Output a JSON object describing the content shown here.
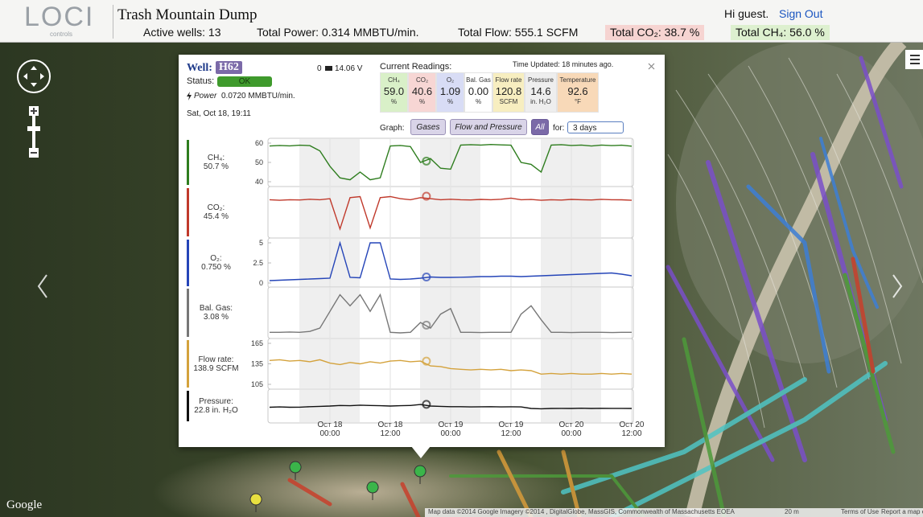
{
  "header": {
    "logo": "LOCI",
    "logo_sub": "controls",
    "title": "Trash Mountain Dump",
    "stats": [
      {
        "text": "Active wells: 13"
      },
      {
        "text": "Total Power: 0.314 MMBTU/min."
      },
      {
        "text": "Total Flow: 555.1 SCFM"
      },
      {
        "text": "Total CO₂: 38.7 %",
        "background": "#f6d4d1"
      },
      {
        "text": "Total CH₄: 56.0 %",
        "background": "#ddf0cf"
      }
    ],
    "greeting": "Hi guest.",
    "sign_out": "Sign Out"
  },
  "popup": {
    "well_label": "Well:",
    "well": "H62",
    "signal": "0",
    "voltage": "14.06 V",
    "status_label": "Status:",
    "status": "OK",
    "power_label": "Power",
    "power": "0.0720 MMBTU/min.",
    "date": "Sat, Oct 18, 19:11",
    "readings_title": "Current Readings:",
    "time_updated": "Time Updated: 18 minutes ago.",
    "readings": [
      {
        "name": "CH₄",
        "value": "59.0",
        "unit": "%",
        "color": "#d9f0c8"
      },
      {
        "name": "CO₂",
        "value": "40.6",
        "unit": "%",
        "color": "#f7d6d4"
      },
      {
        "name": "O₂",
        "value": "1.09",
        "unit": "%",
        "color": "#d8dcf5"
      },
      {
        "name": "Bal. Gas",
        "value": "0.00",
        "unit": "%",
        "color": "#ffffff"
      },
      {
        "name": "Flow rate",
        "value": "120.8",
        "unit": "SCFM",
        "color": "#f7eec0"
      },
      {
        "name": "Pressure",
        "value": "14.6",
        "unit": "in. H₂O",
        "color": "#eeeeee"
      },
      {
        "name": "Temperature",
        "value": "92.6",
        "unit": "°F",
        "color": "#f8d9b8"
      }
    ],
    "graph_label": "Graph:",
    "buttons": [
      "Gases",
      "Flow and Pressure",
      "All"
    ],
    "for_label": "for:",
    "range": "3 days"
  },
  "chart_data": {
    "type": "line",
    "x": [
      "Oct 17 12:00",
      "Oct 17 14:00",
      "Oct 17 16:00",
      "Oct 17 18:00",
      "Oct 17 20:00",
      "Oct 17 22:00",
      "Oct 18 00:00",
      "Oct 18 02:00",
      "Oct 18 04:00",
      "Oct 18 06:00",
      "Oct 18 08:00",
      "Oct 18 10:00",
      "Oct 18 12:00",
      "Oct 18 14:00",
      "Oct 18 16:00",
      "Oct 18 18:00",
      "Oct 18 20:00",
      "Oct 18 22:00",
      "Oct 19 00:00",
      "Oct 19 02:00",
      "Oct 19 04:00",
      "Oct 19 06:00",
      "Oct 19 08:00",
      "Oct 19 10:00",
      "Oct 19 12:00",
      "Oct 19 14:00",
      "Oct 19 16:00",
      "Oct 19 18:00",
      "Oct 19 20:00",
      "Oct 19 22:00",
      "Oct 20 00:00",
      "Oct 20 02:00",
      "Oct 20 04:00",
      "Oct 20 06:00",
      "Oct 20 08:00",
      "Oct 20 10:00",
      "Oct 20 12:00"
    ],
    "xlim": [
      "Oct 17 12:00",
      "Oct 20 12:00"
    ],
    "xticks": [
      "Oct 18 00:00",
      "Oct 18 12:00",
      "Oct 19 00:00",
      "Oct 19 12:00",
      "Oct 20 00:00",
      "Oct 20 12:00"
    ],
    "series": [
      {
        "name": "CH₄:",
        "current": "50.7 %",
        "color": "#2e7d1e",
        "ylim": [
          40,
          60
        ],
        "yticks": [
          60,
          50,
          40
        ],
        "values": [
          58.5,
          58.8,
          58.6,
          58.9,
          58.7,
          56,
          48,
          42,
          41,
          45,
          41,
          42,
          58.5,
          58.8,
          58.2,
          50,
          52,
          47,
          46.5,
          59,
          59.2,
          59,
          59.3,
          59.1,
          58.9,
          50,
          49,
          45,
          59,
          59.2,
          58.8,
          59,
          58.5,
          59,
          58.7,
          58.9,
          58.4
        ]
      },
      {
        "name": "CO₂:",
        "current": "45.4 %",
        "color": "#c0392b",
        "ylim": [
          10,
          50
        ],
        "values": [
          42,
          41.5,
          42,
          41.8,
          42.5,
          42,
          43,
          14,
          44,
          45,
          15,
          44,
          45,
          43,
          42,
          44,
          43,
          42,
          42.5,
          42,
          41.8,
          42.3,
          42,
          42.5,
          43.5,
          42,
          42.2,
          41.5,
          42,
          41.7,
          42.3,
          42,
          41.8,
          42.4,
          42,
          41.9,
          41.5
        ]
      },
      {
        "name": "O₂:",
        "current": "0.750 %",
        "color": "#2545b8",
        "ylim": [
          0,
          5
        ],
        "yticks": [
          5,
          2.5,
          0
        ],
        "values": [
          0.3,
          0.35,
          0.4,
          0.45,
          0.5,
          0.55,
          0.6,
          5,
          0.7,
          0.65,
          5,
          5,
          0.5,
          0.45,
          0.5,
          0.6,
          0.75,
          0.7,
          0.7,
          0.72,
          0.75,
          0.8,
          0.8,
          0.85,
          0.85,
          0.8,
          0.85,
          0.9,
          0.95,
          1.0,
          1.05,
          1.1,
          1.15,
          1.2,
          1.25,
          1.1,
          0.9
        ]
      },
      {
        "name": "Bal. Gas:",
        "current": "3.08 %",
        "color": "#777777",
        "ylim": [
          0,
          15
        ],
        "values": [
          0.5,
          0.5,
          0.6,
          0.5,
          0.8,
          2,
          8,
          14,
          10,
          14,
          8,
          14,
          0.5,
          0.3,
          0.5,
          4,
          2,
          7,
          9,
          0.5,
          0.5,
          0.4,
          0.5,
          0.5,
          0.5,
          7,
          10,
          5,
          0.5,
          0.5,
          0.4,
          0.5,
          0.5,
          0.5,
          0.4,
          0.5,
          0.5
        ]
      },
      {
        "name": "Flow rate:",
        "current": "138.9 SCFM",
        "color": "#d4a23c",
        "ylim": [
          105,
          165
        ],
        "yticks": [
          165,
          135,
          105
        ],
        "values": [
          140,
          141,
          139,
          140,
          138,
          141,
          136,
          134,
          137,
          135,
          138,
          136,
          139,
          140,
          138,
          139,
          132,
          131,
          128,
          127,
          126,
          127,
          126,
          127,
          125,
          126,
          125,
          120,
          121,
          120,
          121,
          120,
          120,
          121,
          120,
          121,
          120
        ]
      },
      {
        "name": "Pressure:",
        "current": "22.8 in. H₂O",
        "color": "#111111",
        "ylim": [
          0,
          40
        ],
        "values": [
          18,
          18.5,
          18,
          18.2,
          19,
          19.5,
          20,
          21,
          20.5,
          21.5,
          21,
          20.5,
          20,
          20.5,
          21,
          22.5,
          20,
          19.5,
          19,
          19,
          18.5,
          18.8,
          19,
          18.6,
          18.8,
          18.5,
          16,
          15.5,
          16,
          16.2,
          16,
          16.4,
          16,
          16.3,
          16.1,
          16.2,
          16
        ]
      }
    ]
  },
  "map": {
    "brand": "Google",
    "attribution": "Map data ©2014 Google Imagery ©2014 , DigitalGlobe, MassGIS, Commonwealth of Massachusetts EOEA",
    "scale": "20 m",
    "terms": "Terms of Use",
    "report": "Report a map error"
  }
}
